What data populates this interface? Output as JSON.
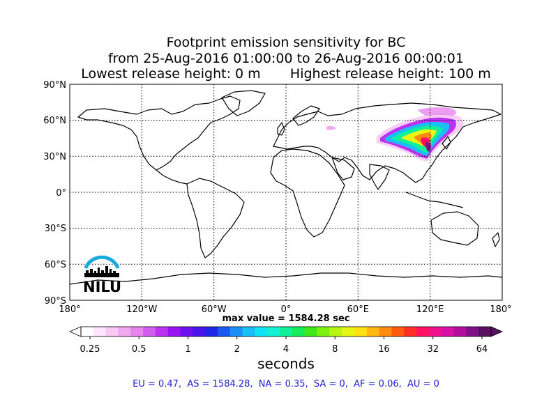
{
  "title": {
    "line1": "Footprint emission sensitivity for BC",
    "line2": "from 25-Aug-2016 01:00:00 to 26-Aug-2016 00:00:01",
    "line3": "Lowest release height: 0 m       Highest release height: 100 m"
  },
  "map": {
    "lat_labels": [
      "90°N",
      "60°N",
      "30°N",
      "0°",
      "30°S",
      "60°S",
      "90°S"
    ],
    "lon_labels": [
      "180°",
      "120°W",
      "60°W",
      "0°",
      "60°E",
      "120°E",
      "180°"
    ],
    "lon_range": [
      -180,
      180
    ],
    "lat_range": [
      -90,
      90
    ],
    "gridline_interval_deg": 30,
    "ocean_color": "#ffffff",
    "coastline_color": "#000000"
  },
  "max_value_text": "max value = 1584.28 sec",
  "colorbar": {
    "ticks": [
      "0.25",
      "0.5",
      "1",
      "2",
      "4",
      "8",
      "16",
      "32",
      "64"
    ],
    "unit_label": "seconds",
    "colors": [
      "#ffffff",
      "#fde6fb",
      "#f9c8f5",
      "#f2a8f0",
      "#e884ee",
      "#d45cee",
      "#bb33f0",
      "#9a14f2",
      "#7010f0",
      "#4a14ec",
      "#2026e8",
      "#1a5af0",
      "#1a90f4",
      "#18c0f6",
      "#10e4f2",
      "#10f2d2",
      "#10f09a",
      "#16ec5a",
      "#40e816",
      "#7ef012",
      "#b8f412",
      "#e8f412",
      "#ffe010",
      "#ffb810",
      "#ff8a10",
      "#ff5c10",
      "#ff2e22",
      "#ff1060",
      "#f0108e",
      "#d810a6",
      "#b0109c",
      "#801088",
      "#581060"
    ]
  },
  "region_stats": "EU = 0.47,  AS = 1584.28,  NA = 0.35,  SA = 0,  AF = 0.06,  AU = 0",
  "logo": {
    "text": "NILU",
    "arc_color": "#1aa8e0"
  }
}
